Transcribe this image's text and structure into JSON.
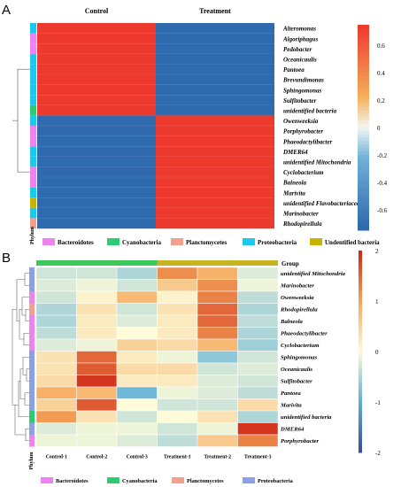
{
  "panels": {
    "a_label": "A",
    "b_label": "B"
  },
  "phylum_label": "Phylum",
  "group_label": "Group",
  "colors": {
    "Bacteroidotes": "#ee82ee",
    "Cyanobacteria": "#2ecc71",
    "Planctomycetes": "#f4a090",
    "Proteobacteria": "#1ec8ec",
    "Undentified bacteria": "#c8b400",
    "Proteobacteria_b": "#8ca0e8",
    "group_control": "#3cc85a",
    "group_treatment": "#c8b420",
    "heat_low_a": "#2b6db0",
    "heat_high_a": "#ec3a30"
  },
  "chart_data": [
    {
      "type": "heatmap",
      "panel": "A",
      "columns": [
        "Control",
        "Treatment"
      ],
      "rows": [
        {
          "name": "Alteromonas",
          "phylum": "Proteobacteria",
          "values": [
            0.75,
            -0.75
          ]
        },
        {
          "name": "Algoriphagus",
          "phylum": "Bacteroidotes",
          "values": [
            0.75,
            -0.75
          ]
        },
        {
          "name": "Pedobacter",
          "phylum": "Bacteroidotes",
          "values": [
            0.75,
            -0.75
          ]
        },
        {
          "name": "Oceanicaulis",
          "phylum": "Proteobacteria",
          "values": [
            0.75,
            -0.75
          ]
        },
        {
          "name": "Pantoea",
          "phylum": "Proteobacteria",
          "values": [
            0.75,
            -0.75
          ]
        },
        {
          "name": "Brevundimonas",
          "phylum": "Proteobacteria",
          "values": [
            0.75,
            -0.75
          ]
        },
        {
          "name": "Sphingomonas",
          "phylum": "Proteobacteria",
          "values": [
            0.75,
            -0.75
          ]
        },
        {
          "name": "Sulfitobacter",
          "phylum": "Proteobacteria",
          "values": [
            0.75,
            -0.75
          ]
        },
        {
          "name": "unidentified bacteria",
          "phylum": "Cyanobacteria",
          "values": [
            0.75,
            -0.75
          ]
        },
        {
          "name": "Owenweeksia",
          "phylum": "Proteobacteria",
          "values": [
            -0.75,
            0.75
          ]
        },
        {
          "name": "Porphyrobacter",
          "phylum": "Bacteroidotes",
          "values": [
            -0.75,
            0.75
          ]
        },
        {
          "name": "Phaeodactylibacter",
          "phylum": "Bacteroidotes",
          "values": [
            -0.75,
            0.75
          ]
        },
        {
          "name": "DMER64",
          "phylum": "Proteobacteria",
          "values": [
            -0.75,
            0.75
          ]
        },
        {
          "name": "unidentified Mitochondria",
          "phylum": "Proteobacteria",
          "values": [
            -0.75,
            0.75
          ]
        },
        {
          "name": "Cyclobacterium",
          "phylum": "Bacteroidotes",
          "values": [
            -0.75,
            0.75
          ]
        },
        {
          "name": "Balneola",
          "phylum": "Bacteroidotes",
          "values": [
            -0.75,
            0.75
          ]
        },
        {
          "name": "Marivita",
          "phylum": "Proteobacteria",
          "values": [
            -0.75,
            0.75
          ]
        },
        {
          "name": "unidentified Flavobacteriaceae",
          "phylum": "Undentified bacteria",
          "values": [
            -0.75,
            0.75
          ]
        },
        {
          "name": "Marinobacter",
          "phylum": "Proteobacteria",
          "values": [
            -0.75,
            0.75
          ]
        },
        {
          "name": "Rhodopirellula",
          "phylum": "Planctomycetes",
          "values": [
            -0.75,
            0.75
          ]
        }
      ],
      "colorbar": {
        "ticks": [
          "0.6",
          "0.4",
          "0.2",
          "0",
          "-0.2",
          "-0.4",
          "-0.6"
        ],
        "range": [
          -0.75,
          0.75
        ]
      },
      "legend": [
        "Bacteroidotes",
        "Cyanobacteria",
        "Planctomycetes",
        "Proteobacteria",
        "Undentified bacteria"
      ]
    },
    {
      "type": "heatmap",
      "panel": "B",
      "columns": [
        "Control-1",
        "Control-2",
        "Control-3",
        "Treatment-1",
        "Treatment-2",
        "Treatment-3"
      ],
      "groups": [
        "Control",
        "Control",
        "Control",
        "Treatment",
        "Treatment",
        "Treatment"
      ],
      "rows": [
        {
          "name": "unidentified Mitochondria",
          "phylum": "Proteobacteria",
          "values": [
            -0.3,
            -0.3,
            -0.5,
            1.2,
            0.9,
            -0.2
          ]
        },
        {
          "name": "Marinobacter",
          "phylum": "Proteobacteria",
          "values": [
            -0.2,
            -0.1,
            -0.3,
            0.6,
            1.2,
            -0.1
          ]
        },
        {
          "name": "Owenweeksia",
          "phylum": "Bacteroidotes",
          "values": [
            -0.3,
            0.1,
            0.8,
            0.1,
            1.3,
            -0.4
          ]
        },
        {
          "name": "Rhodopirellula",
          "phylum": "Planctomycetes",
          "values": [
            -0.5,
            0.3,
            -0.3,
            0.3,
            1.5,
            -0.5
          ]
        },
        {
          "name": "Balneola",
          "phylum": "Bacteroidotes",
          "values": [
            -0.5,
            0.2,
            -0.2,
            0.2,
            1.5,
            -0.4
          ]
        },
        {
          "name": "Phaeodactylibacter",
          "phylum": "Bacteroidotes",
          "values": [
            -0.4,
            0.2,
            0.0,
            0.2,
            1.3,
            -0.5
          ]
        },
        {
          "name": "Cyclobacterium",
          "phylum": "Bacteroidotes",
          "values": [
            -0.2,
            -0.1,
            0.5,
            0.4,
            0.8,
            -0.6
          ]
        },
        {
          "name": "Sphingomonas",
          "phylum": "Proteobacteria",
          "values": [
            0.3,
            1.5,
            0.2,
            -0.1,
            -0.7,
            -0.3
          ]
        },
        {
          "name": "Oceanicaulis",
          "phylum": "Proteobacteria",
          "values": [
            0.3,
            1.6,
            0.4,
            0.4,
            -0.3,
            -0.2
          ]
        },
        {
          "name": "Sulfitobacter",
          "phylum": "Proteobacteria",
          "values": [
            0.4,
            1.9,
            0.2,
            0.2,
            -0.2,
            -0.3
          ]
        },
        {
          "name": "Pantoea",
          "phylum": "Proteobacteria",
          "values": [
            0.9,
            0.8,
            -0.9,
            -0.1,
            -0.2,
            -0.4
          ]
        },
        {
          "name": "Marivita",
          "phylum": "Proteobacteria",
          "values": [
            0.5,
            1.6,
            0.0,
            -0.3,
            -0.3,
            0.4
          ]
        },
        {
          "name": "unidentified bacteria",
          "phylum": "Cyanobacteria",
          "values": [
            1.1,
            0.3,
            -0.3,
            0.0,
            0.3,
            -0.5
          ]
        },
        {
          "name": "DMER64",
          "phylum": "Proteobacteria",
          "values": [
            -0.2,
            -0.1,
            -0.1,
            -0.3,
            -0.1,
            1.9
          ]
        },
        {
          "name": "Porphyrobacter",
          "phylum": "Bacteroidotes",
          "values": [
            -0.1,
            -0.1,
            -0.2,
            -0.4,
            0.6,
            1.3
          ]
        }
      ],
      "colorbar": {
        "ticks": [
          "2",
          "1",
          "0",
          "-1",
          "-2"
        ],
        "range": [
          -2,
          2
        ]
      },
      "legend": [
        "Bacteroidotes",
        "Cyanobacteria",
        "Planctomycetes",
        "Proteobacteria"
      ]
    }
  ]
}
